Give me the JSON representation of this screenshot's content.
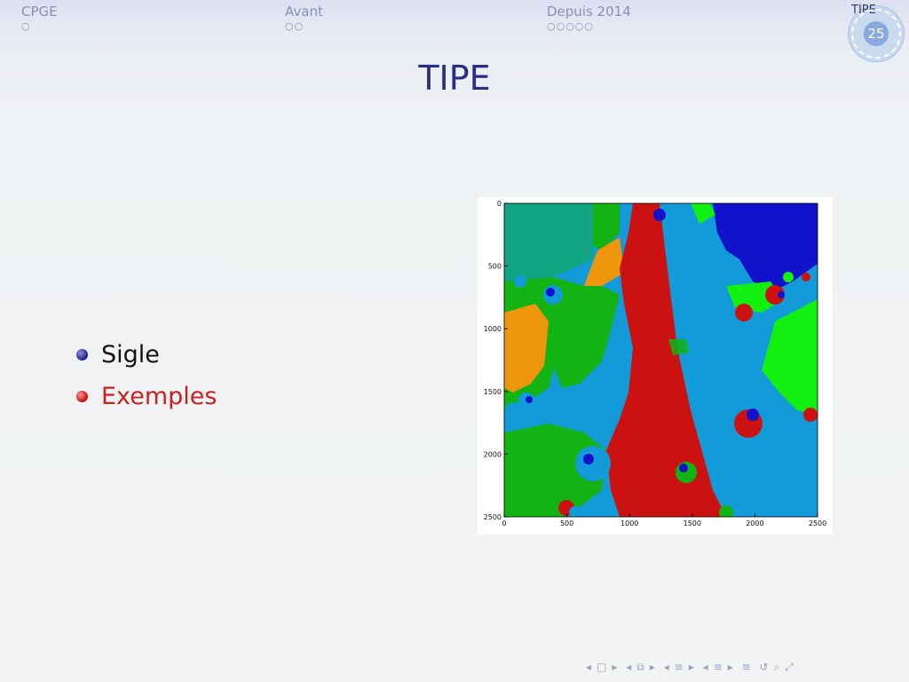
{
  "header": {
    "sections": [
      {
        "label": "CPGE",
        "dots": "○"
      },
      {
        "label": "Avant",
        "dots": "○○"
      },
      {
        "label": "Depuis 2014",
        "dots": "○○○○○"
      },
      {
        "label": "TIPE",
        "dots": ""
      }
    ],
    "slide_number": "25"
  },
  "slide": {
    "title": "TIPE",
    "bullets": [
      {
        "text": "Sigle",
        "color": "#111111"
      },
      {
        "text": "Exemples",
        "color": "#cc1f1f"
      }
    ]
  },
  "figure": {
    "xticks": [
      "0",
      "500",
      "1000",
      "1500",
      "2000",
      "2500"
    ],
    "yticks": [
      "0",
      "500",
      "1000",
      "1500",
      "2000",
      "2500"
    ],
    "colors": {
      "teal": "#12a383",
      "orange": "#ee960e",
      "green": "#12b312",
      "red": "#cc1111",
      "lightblue": "#139ad8",
      "brightgreen": "#12f012",
      "blue": "#1212cc"
    }
  },
  "footer": {
    "nav_icons": [
      "prev-frame-icon",
      "frame-icon",
      "next-frame-icon",
      "prev-subsection-icon",
      "subsection-icon",
      "next-subsection-icon",
      "prev-section-icon",
      "section-icon",
      "next-section-icon",
      "appendix-icon",
      "back-icon",
      "search-icon",
      "zoom-icon"
    ]
  }
}
